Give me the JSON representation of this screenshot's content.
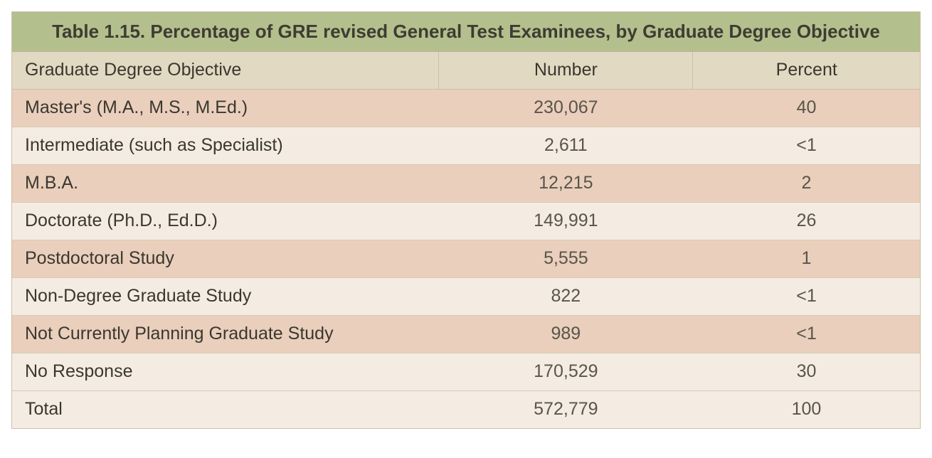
{
  "table": {
    "type": "table",
    "title": "Table 1.15. Percentage of GRE revised General Test Examinees, by Graduate Degree Objective",
    "title_bg": "#b3c08d",
    "title_color": "#403b33",
    "title_fontsize": 26,
    "header_bg": "#e1d9c2",
    "stripe_colors": [
      "#e9cfbc",
      "#f4ece2"
    ],
    "border_color": "#cdbfa9",
    "body_fontsize": 25,
    "text_color": "#3b372f",
    "value_text_color": "#5a544a",
    "columns": [
      {
        "key": "label",
        "header": "Graduate Degree Objective",
        "align": "left",
        "width_pct": 47
      },
      {
        "key": "number",
        "header": "Number",
        "align": "center",
        "width_pct": 28
      },
      {
        "key": "percent",
        "header": "Percent",
        "align": "center",
        "width_pct": 25
      }
    ],
    "rows": [
      {
        "label": "Master's (M.A., M.S., M.Ed.)",
        "number": "230,067",
        "percent": "40"
      },
      {
        "label": "Intermediate (such as Specialist)",
        "number": "2,611",
        "percent": "<1"
      },
      {
        "label": "M.B.A.",
        "number": "12,215",
        "percent": "2"
      },
      {
        "label": "Doctorate (Ph.D., Ed.D.)",
        "number": "149,991",
        "percent": "26"
      },
      {
        "label": "Postdoctoral Study",
        "number": "5,555",
        "percent": "1"
      },
      {
        "label": "Non-Degree Graduate Study",
        "number": "822",
        "percent": "<1"
      },
      {
        "label": "Not Currently Planning Graduate Study",
        "number": "989",
        "percent": "<1"
      },
      {
        "label": "No Response",
        "number": "170,529",
        "percent": "30"
      },
      {
        "label": "Total",
        "number": "572,779",
        "percent": "100"
      }
    ]
  }
}
